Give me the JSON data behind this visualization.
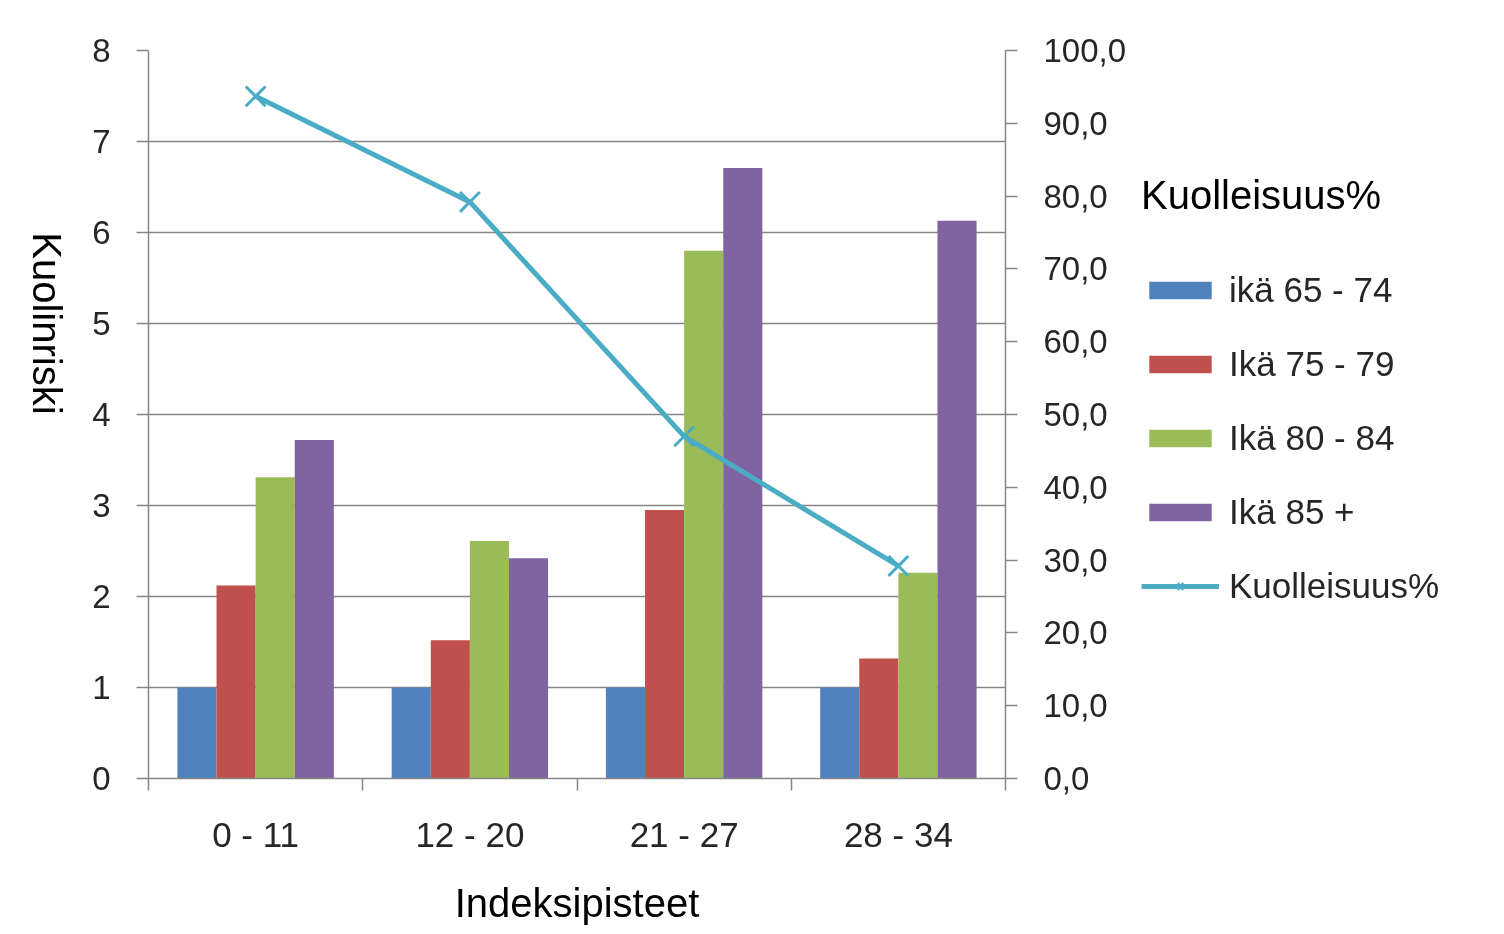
{
  "chart_data": {
    "type": "bar",
    "xlabel": "Indeksipisteet",
    "ylabel": "Kuolinriski",
    "y2label": "Kuolleisuus%",
    "categories": [
      "0 - 11",
      "12 - 20",
      "21 - 27",
      "28 - 34"
    ],
    "series": [
      {
        "name": "ikä 65 - 74",
        "color": "#4f81bd",
        "values": [
          1,
          1,
          1,
          1
        ]
      },
      {
        "name": "Ikä 75 - 79",
        "color": "#c0504d",
        "values": [
          2.12,
          1.52,
          2.95,
          1.32
        ]
      },
      {
        "name": "Ikä 80 - 84",
        "color": "#9bbb59",
        "values": [
          3.31,
          2.61,
          5.8,
          2.26
        ]
      },
      {
        "name": "Ikä 85 +",
        "color": "#8064a2",
        "values": [
          3.72,
          2.42,
          6.71,
          6.13
        ]
      },
      {
        "name": "Kuolleisuus%",
        "type": "line",
        "axis": "y2",
        "color": "#4bacc6",
        "marker": "cross",
        "values": [
          93.7,
          79.2,
          47.0,
          29.2
        ]
      }
    ],
    "ylim": [
      0,
      8
    ],
    "yticks": [
      0,
      1,
      2,
      3,
      4,
      5,
      6,
      7,
      8
    ],
    "y2lim": [
      0,
      100
    ],
    "y2ticks": [
      {
        "value": 0,
        "label": "0,0"
      },
      {
        "value": 10,
        "label": "10,0"
      },
      {
        "value": 20,
        "label": "20,0"
      },
      {
        "value": 30,
        "label": "30,0"
      },
      {
        "value": 40,
        "label": "40,0"
      },
      {
        "value": 50,
        "label": "50,0"
      },
      {
        "value": 60,
        "label": "60,0"
      },
      {
        "value": 70,
        "label": "70,0"
      },
      {
        "value": 80,
        "label": "80,0"
      },
      {
        "value": 90,
        "label": "90,0"
      },
      {
        "value": 100,
        "label": "100,0"
      }
    ],
    "grid": "y",
    "legend": "right"
  }
}
